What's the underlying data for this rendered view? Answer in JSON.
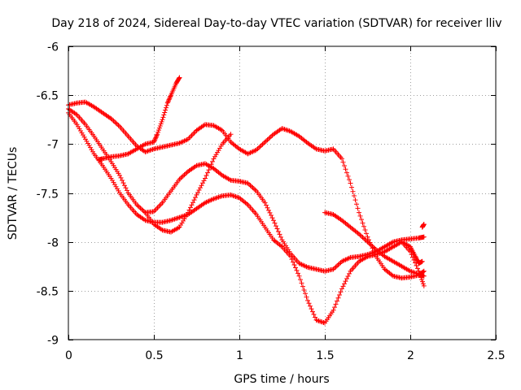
{
  "chart_data": {
    "type": "scatter",
    "title": "Day 218 of 2024, Sidereal Day-to-day VTEC variation (SDTVAR) for receiver lliv",
    "xlabel": "GPS time / hours",
    "ylabel": "SDTVAR / TECUs",
    "xlim": [
      0,
      2.5
    ],
    "ylim": [
      -9,
      -6
    ],
    "xticks": [
      0,
      0.5,
      1,
      1.5,
      2,
      2.5
    ],
    "xtick_labels": [
      "0",
      "0.5",
      "1",
      "1.5",
      "2",
      "2.5"
    ],
    "yticks": [
      -9,
      -8.5,
      -8,
      -7.5,
      -7,
      -6.5,
      -6
    ],
    "ytick_labels": [
      "-9",
      "-8.5",
      "-8",
      "-7.5",
      "-7",
      "-6.5",
      "-6"
    ],
    "grid": true,
    "marker": "plus",
    "marker_color": "#ff0000",
    "series": [
      {
        "x": [
          0,
          0.05,
          0.1,
          0.15,
          0.2,
          0.25,
          0.3,
          0.35,
          0.4,
          0.45,
          0.5,
          0.55,
          0.6,
          0.65,
          0.7,
          0.75,
          0.8,
          0.85,
          0.9,
          0.95,
          1.0,
          1.05,
          1.1,
          1.15,
          1.2,
          1.25,
          1.3,
          1.35,
          1.4,
          1.45,
          1.5,
          1.55,
          1.6,
          1.65,
          1.7,
          1.75,
          1.8,
          1.85,
          1.9,
          1.95,
          2.0,
          2.05,
          2.08
        ],
        "y": [
          -6.6,
          -6.58,
          -6.57,
          -6.62,
          -6.68,
          -6.74,
          -6.82,
          -6.92,
          -7.02,
          -7.08,
          -7.05,
          -7.03,
          -7.01,
          -6.99,
          -6.95,
          -6.86,
          -6.8,
          -6.81,
          -6.86,
          -6.98,
          -7.05,
          -7.1,
          -7.06,
          -6.98,
          -6.9,
          -6.84,
          -6.87,
          -6.92,
          -6.99,
          -7.05,
          -7.07,
          -7.05,
          -7.15,
          -7.4,
          -7.7,
          -7.95,
          -8.15,
          -8.28,
          -8.35,
          -8.37,
          -8.36,
          -8.34,
          -8.3
        ]
      },
      {
        "x": [
          0,
          0.05,
          0.1,
          0.15,
          0.2,
          0.25,
          0.3,
          0.35,
          0.4,
          0.45,
          0.5,
          0.55,
          0.6,
          0.65,
          0.7,
          0.75,
          0.8,
          0.85,
          0.9,
          0.95,
          1.0,
          1.05,
          1.1,
          1.15,
          1.2,
          1.25,
          1.3,
          1.35,
          1.4,
          1.45,
          1.5,
          1.55,
          1.6,
          1.65,
          1.7,
          1.75,
          1.8,
          1.85,
          1.9,
          1.95,
          2.0,
          2.05,
          2.08
        ],
        "y": [
          -6.64,
          -6.7,
          -6.8,
          -6.92,
          -7.05,
          -7.18,
          -7.32,
          -7.5,
          -7.62,
          -7.7,
          -7.69,
          -7.6,
          -7.48,
          -7.36,
          -7.28,
          -7.22,
          -7.2,
          -7.25,
          -7.32,
          -7.37,
          -7.38,
          -7.4,
          -7.48,
          -7.6,
          -7.78,
          -7.98,
          -8.12,
          -8.22,
          -8.26,
          -8.28,
          -8.3,
          -8.28,
          -8.2,
          -8.16,
          -8.15,
          -8.13,
          -8.1,
          -8.05,
          -8.0,
          -7.98,
          -7.97,
          -7.96,
          -7.95
        ]
      },
      {
        "x": [
          0,
          0.05,
          0.1,
          0.15,
          0.2,
          0.25,
          0.3,
          0.35,
          0.4,
          0.45,
          0.5,
          0.55,
          0.6,
          0.65,
          0.7,
          0.75,
          0.8,
          0.85,
          0.9,
          0.95,
          1.0,
          1.05,
          1.1,
          1.15,
          1.2,
          1.25,
          1.3,
          1.35,
          1.4,
          1.45,
          1.5,
          1.55,
          1.6,
          1.65,
          1.7,
          1.75,
          1.8,
          1.85,
          1.9,
          1.95,
          2.0,
          2.05,
          2.08
        ],
        "y": [
          -6.68,
          -6.8,
          -6.95,
          -7.1,
          -7.22,
          -7.35,
          -7.5,
          -7.62,
          -7.72,
          -7.78,
          -7.8,
          -7.8,
          -7.78,
          -7.75,
          -7.72,
          -7.66,
          -7.6,
          -7.56,
          -7.53,
          -7.52,
          -7.55,
          -7.62,
          -7.72,
          -7.85,
          -7.98,
          -8.05,
          -8.15,
          -8.35,
          -8.6,
          -8.8,
          -8.83,
          -8.7,
          -8.48,
          -8.3,
          -8.2,
          -8.15,
          -8.13,
          -8.1,
          -8.05,
          -8.0,
          -8.1,
          -8.3,
          -8.45
        ]
      },
      {
        "x": [
          0.18,
          0.2,
          0.25,
          0.3,
          0.35,
          0.4,
          0.45,
          0.5,
          0.52,
          0.55,
          0.58,
          0.6,
          0.63,
          0.65
        ],
        "y": [
          -7.16,
          -7.15,
          -7.13,
          -7.12,
          -7.1,
          -7.05,
          -7.0,
          -6.98,
          -6.9,
          -6.75,
          -6.58,
          -6.5,
          -6.38,
          -6.32
        ]
      },
      {
        "x": [
          0.45,
          0.5,
          0.55,
          0.6,
          0.65,
          0.7,
          0.75,
          0.8,
          0.85,
          0.9,
          0.95
        ],
        "y": [
          -7.7,
          -7.82,
          -7.88,
          -7.9,
          -7.85,
          -7.7,
          -7.52,
          -7.35,
          -7.15,
          -7.0,
          -6.9
        ]
      },
      {
        "x": [
          1.5,
          1.55,
          1.6,
          1.65,
          1.7,
          1.75,
          1.8,
          1.85,
          1.9,
          1.95,
          2.0,
          2.05,
          2.08
        ],
        "y": [
          -7.7,
          -7.72,
          -7.78,
          -7.85,
          -7.92,
          -8.0,
          -8.08,
          -8.15,
          -8.2,
          -8.25,
          -8.3,
          -8.33,
          -8.35
        ]
      },
      {
        "x": [
          1.95,
          2.0,
          2.03,
          2.05,
          2.07
        ],
        "y": [
          -8.0,
          -8.05,
          -8.15,
          -8.22,
          -8.2
        ]
      },
      {
        "x": [
          2.07,
          2.08
        ],
        "y": [
          -7.85,
          -7.82
        ]
      }
    ]
  }
}
